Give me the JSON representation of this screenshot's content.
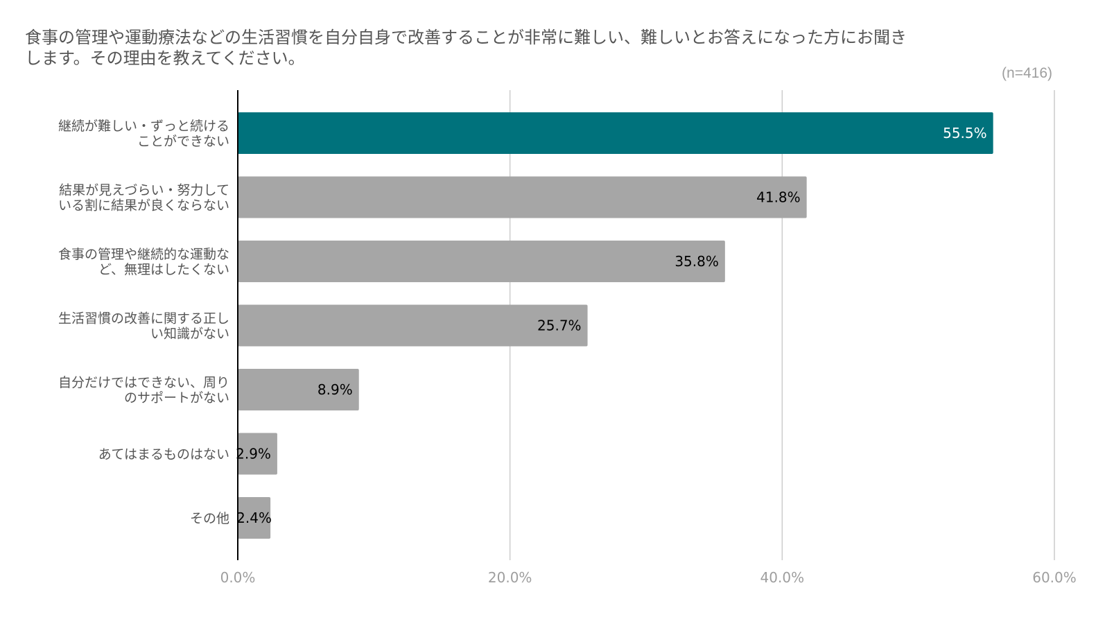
{
  "title_lines": [
    "食事の管理や運動療法などの生活習慣を自分自身で改善することが非常に難しい、難しいとお答えになった方にお聞き",
    "します。その理由を教えてください。"
  ],
  "sample_size": "(n=416)",
  "colors": {
    "highlight_bar": "#00727c",
    "default_bar": "#a6a6a6",
    "grid": "#cccccc",
    "axis": "#000000",
    "category_text": "#555555",
    "tick_text": "#9e9e9e",
    "label_on_highlight": "#ffffff",
    "label_inside": "#000000",
    "label_outside": "#9e9e9e",
    "title_text": "#555555"
  },
  "chart_data": {
    "type": "bar",
    "orientation": "horizontal",
    "categories": [
      [
        "継続が難しい・ずっと続ける",
        "ことができない"
      ],
      [
        "結果が見えづらい・努力して",
        "いる割に結果が良くならない"
      ],
      [
        "食事の管理や継続的な運動な",
        "ど、無理はしたくない"
      ],
      [
        "生活習慣の改善に関する正し",
        "い知識がない"
      ],
      [
        "自分だけではできない、周り",
        "のサポートがない"
      ],
      [
        "あてはまるものはない"
      ],
      [
        "その他"
      ]
    ],
    "values": [
      55.5,
      41.8,
      35.8,
      25.7,
      8.9,
      2.9,
      2.4
    ],
    "value_labels": [
      "55.5%",
      "41.8%",
      "35.8%",
      "25.7%",
      "8.9%",
      "2.9%",
      "2.4%"
    ],
    "highlight_index": 0,
    "xlim": [
      0,
      60
    ],
    "x_ticks": [
      0,
      20,
      40,
      60
    ],
    "x_tick_labels": [
      "0.0%",
      "20.0%",
      "40.0%",
      "60.0%"
    ],
    "grid": true,
    "legend": "none",
    "xlabel": "",
    "ylabel": ""
  }
}
